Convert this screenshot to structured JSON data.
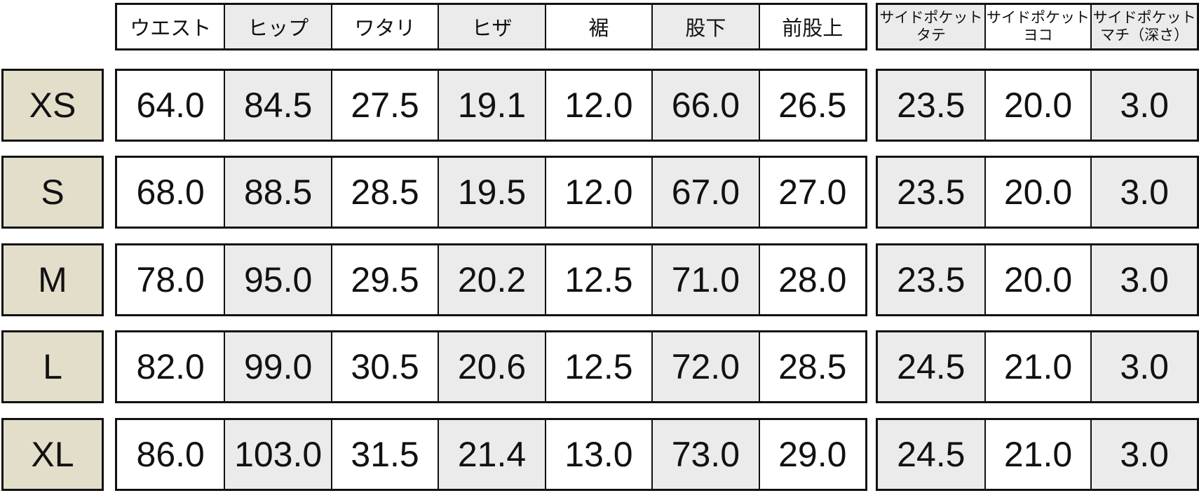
{
  "colors": {
    "size_label_bg": "#e3dec9",
    "stripe": "#ebebeb",
    "border": "#111111",
    "cell_bg": "#ffffff"
  },
  "chart_data": {
    "type": "table",
    "column_groups": [
      {
        "name": "body-measurements",
        "headers": [
          "ウエスト",
          "ヒップ",
          "ワタリ",
          "ヒザ",
          "裾",
          "股下",
          "前股上"
        ]
      },
      {
        "name": "side-pocket",
        "headers": [
          "サイドポケット\nタテ",
          "サイドポケット\nヨコ",
          "サイドポケット\nマチ（深さ）"
        ]
      }
    ],
    "row_labels": [
      "XS",
      "S",
      "M",
      "L",
      "XL"
    ],
    "rows": [
      {
        "size": "XS",
        "main": [
          "64.0",
          "84.5",
          "27.5",
          "19.1",
          "12.0",
          "66.0",
          "26.5"
        ],
        "pocket": [
          "23.5",
          "20.0",
          "3.0"
        ]
      },
      {
        "size": "S",
        "main": [
          "68.0",
          "88.5",
          "28.5",
          "19.5",
          "12.0",
          "67.0",
          "27.0"
        ],
        "pocket": [
          "23.5",
          "20.0",
          "3.0"
        ]
      },
      {
        "size": "M",
        "main": [
          "78.0",
          "95.0",
          "29.5",
          "20.2",
          "12.5",
          "71.0",
          "28.0"
        ],
        "pocket": [
          "23.5",
          "20.0",
          "3.0"
        ]
      },
      {
        "size": "L",
        "main": [
          "82.0",
          "99.0",
          "30.5",
          "20.6",
          "12.5",
          "72.0",
          "28.5"
        ],
        "pocket": [
          "24.5",
          "21.0",
          "3.0"
        ]
      },
      {
        "size": "XL",
        "main": [
          "86.0",
          "103.0",
          "31.5",
          "21.4",
          "13.0",
          "73.0",
          "29.0"
        ],
        "pocket": [
          "24.5",
          "21.0",
          "3.0"
        ]
      }
    ]
  }
}
